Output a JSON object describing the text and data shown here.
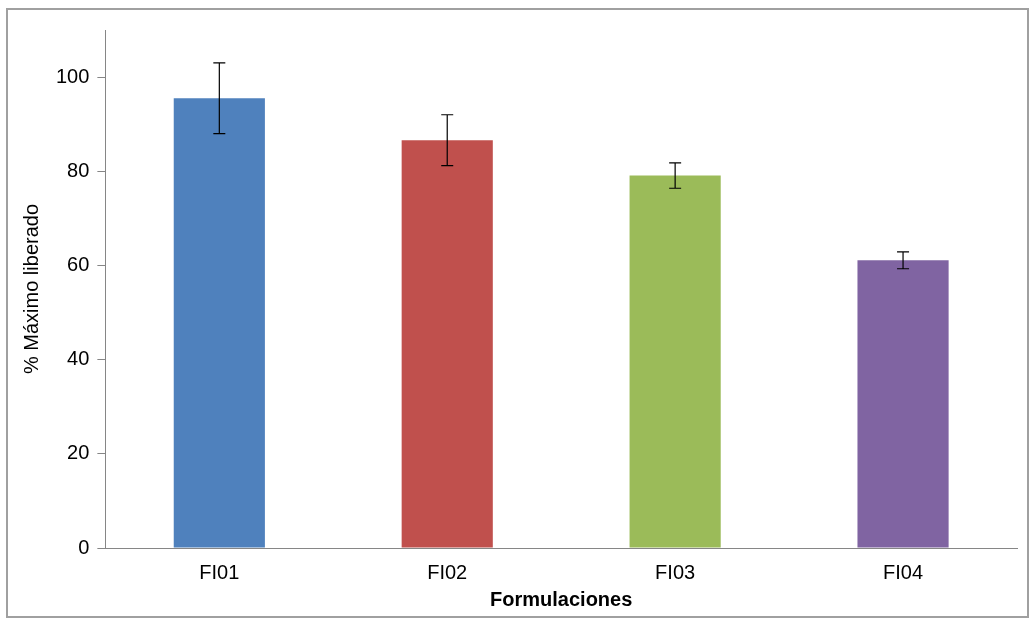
{
  "chart_data": {
    "type": "bar",
    "xlabel": "Formulaciones",
    "ylabel": "% Máximo liberado",
    "categories": [
      "FI01",
      "FI02",
      "FI03",
      "FI04"
    ],
    "values": [
      95.5,
      86.6,
      79.1,
      61.1
    ],
    "colors": [
      "#4f81bd",
      "#c0504d",
      "#9bbb59",
      "#8064a2"
    ],
    "errors": [
      7.5,
      5.4,
      2.7,
      1.8
    ],
    "ylim": [
      0,
      110
    ],
    "yticks": [
      0,
      20,
      40,
      60,
      80,
      100
    ],
    "grid": false,
    "legend": false
  }
}
